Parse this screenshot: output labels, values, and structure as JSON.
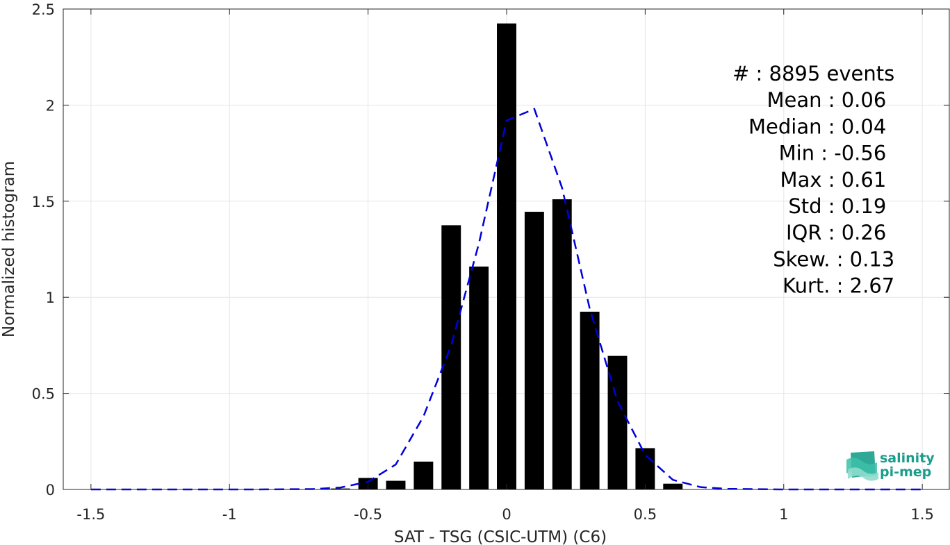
{
  "chart_data": {
    "type": "bar",
    "xlabel": "SAT - TSG (CSIC-UTM) (C6)",
    "ylabel": "Normalized histogram",
    "xlim": [
      -1.6,
      1.6
    ],
    "ylim": [
      0,
      2.5
    ],
    "xticks": [
      "-1.5",
      "-1",
      "-0.5",
      "0",
      "0.5",
      "1",
      "1.5"
    ],
    "xtick_values": [
      -1.5,
      -1,
      -0.5,
      0,
      0.5,
      1,
      1.5
    ],
    "yticks": [
      "0",
      "0.5",
      "1",
      "1.5",
      "2",
      "2.5"
    ],
    "ytick_values": [
      0,
      0.5,
      1,
      1.5,
      2,
      2.5
    ],
    "grid": true,
    "bar_width": 0.07,
    "bars": {
      "x": [
        -0.6,
        -0.5,
        -0.4,
        -0.3,
        -0.2,
        -0.1,
        0.0,
        0.1,
        0.2,
        0.3,
        0.4,
        0.5,
        0.6
      ],
      "values": [
        0.005,
        0.06,
        0.045,
        0.145,
        1.375,
        1.16,
        2.425,
        1.445,
        1.51,
        0.925,
        0.695,
        0.215,
        0.03
      ],
      "color": "#000000"
    },
    "fit_curve": {
      "style": "dashed",
      "color": "#0000dd",
      "x": [
        -1.5,
        -1.3,
        -1.1,
        -0.9,
        -0.7,
        -0.6,
        -0.5,
        -0.4,
        -0.3,
        -0.2,
        -0.1,
        0.0,
        0.1,
        0.2,
        0.3,
        0.4,
        0.5,
        0.6,
        0.7,
        0.8,
        1.0,
        1.2,
        1.5
      ],
      "y": [
        0.0,
        0.0,
        0.0,
        0.0,
        0.002,
        0.01,
        0.04,
        0.13,
        0.38,
        0.75,
        1.28,
        1.92,
        1.98,
        1.57,
        0.94,
        0.46,
        0.18,
        0.05,
        0.012,
        0.003,
        0.0,
        0.0,
        0.0
      ]
    }
  },
  "stats": [
    {
      "label": "#  : 8895 events",
      "x": 1.4
    },
    {
      "label": "Mean : 0.06",
      "x": 1.37
    },
    {
      "label": "Median : 0.04",
      "x": 1.37
    },
    {
      "label": "Min : -0.56",
      "x": 1.37
    },
    {
      "label": "Max : 0.61",
      "x": 1.37
    },
    {
      "label": "Std : 0.19",
      "x": 1.37
    },
    {
      "label": "IQR : 0.26",
      "x": 1.37
    },
    {
      "label": "Skew. : 0.13",
      "x": 1.4
    },
    {
      "label": "Kurt. : 2.67",
      "x": 1.4
    }
  ],
  "logo": {
    "line1": "salinity",
    "line2": "pi-mep",
    "color": "#1a9e8c"
  }
}
